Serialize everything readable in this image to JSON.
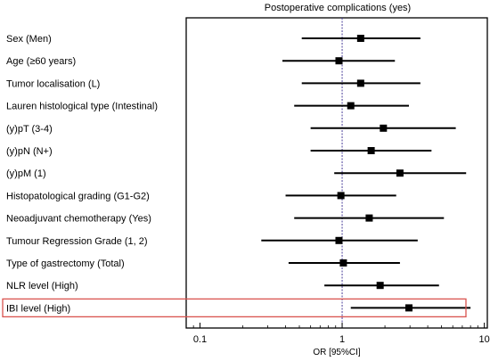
{
  "chart_data": {
    "type": "forest",
    "title": "Postoperative complications (yes)",
    "xlabel": "OR [95%CI]",
    "x_scale": "log",
    "xlim": [
      0.08,
      10.5
    ],
    "x_ticks": [
      {
        "value": 0.1,
        "label": "0.1"
      },
      {
        "value": 1,
        "label": "1"
      },
      {
        "value": 10,
        "label": "10"
      }
    ],
    "reference_line": 1,
    "highlighted_row": "IBI level (High)",
    "highlight_color": "#d9534f",
    "reference_color": "#4a3f9a",
    "rows": [
      {
        "label": "Sex (Men)",
        "or": 1.35,
        "lo": 0.52,
        "hi": 3.55
      },
      {
        "label": "Age (≥60 years)",
        "or": 0.95,
        "lo": 0.38,
        "hi": 2.35
      },
      {
        "label": "Tumor localisation (L)",
        "or": 1.35,
        "lo": 0.52,
        "hi": 3.55
      },
      {
        "label": "Lauren histological type (Intestinal)",
        "or": 1.15,
        "lo": 0.46,
        "hi": 2.95
      },
      {
        "label": "(y)pT (3-4)",
        "or": 1.95,
        "lo": 0.6,
        "hi": 6.3
      },
      {
        "label": "(y)pN (N+)",
        "or": 1.6,
        "lo": 0.6,
        "hi": 4.25
      },
      {
        "label": "(y)pM (1)",
        "or": 2.55,
        "lo": 0.88,
        "hi": 7.45
      },
      {
        "label": "Histopatological grading (G1-G2)",
        "or": 0.98,
        "lo": 0.4,
        "hi": 2.4
      },
      {
        "label": "Neoadjuvant chemotherapy (Yes)",
        "or": 1.55,
        "lo": 0.46,
        "hi": 5.2
      },
      {
        "label": "Tumour Regression Grade (1, 2)",
        "or": 0.95,
        "lo": 0.27,
        "hi": 3.4
      },
      {
        "label": "Type of gastrectomy (Total)",
        "or": 1.02,
        "lo": 0.42,
        "hi": 2.55
      },
      {
        "label": "NLR level (High)",
        "or": 1.85,
        "lo": 0.75,
        "hi": 4.8
      },
      {
        "label": "IBI level (High)",
        "or": 2.95,
        "lo": 1.15,
        "hi": 8.0
      }
    ]
  }
}
